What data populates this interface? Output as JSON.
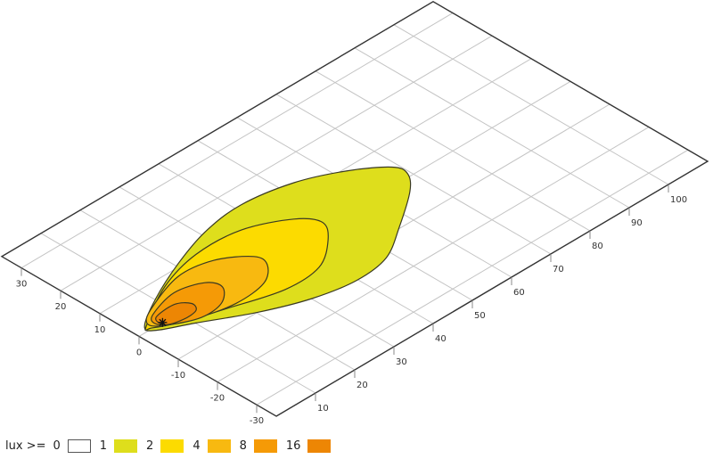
{
  "chart_data": {
    "type": "contour",
    "view": "isometric perspective ground plane",
    "x_axis": {
      "range": [
        0,
        110
      ],
      "ticks": [
        10,
        20,
        30,
        40,
        50,
        60,
        70,
        80,
        90,
        100
      ]
    },
    "y_axis": {
      "range": [
        -35,
        35
      ],
      "ticks": [
        30,
        20,
        10,
        0,
        -10,
        -20,
        -30
      ]
    },
    "grid": true,
    "grid_step": 10,
    "lamp_position": {
      "x": 6,
      "y": 0,
      "marker": "star"
    },
    "legend": {
      "prefix": "lux >=",
      "placement": "bottom-left",
      "items": [
        {
          "label": "0",
          "color": "#ffffff"
        },
        {
          "label": "1",
          "color": "#dede1c"
        },
        {
          "label": "2",
          "color": "#fcdb00"
        },
        {
          "label": "4",
          "color": "#f8b910"
        },
        {
          "label": "8",
          "color": "#f59a06"
        },
        {
          "label": "16",
          "color": "#ed8604"
        }
      ]
    },
    "contours": [
      {
        "level": 1,
        "color": "#dede1c",
        "points": [
          [
            2.8,
            1.4
          ],
          [
            10.2,
            6.0
          ],
          [
            20.8,
            10.8
          ],
          [
            31,
            14.2
          ],
          [
            41.4,
            15.5
          ],
          [
            53,
            13.5
          ],
          [
            62.4,
            9.2
          ],
          [
            68.8,
            4.3
          ],
          [
            69.4,
            1
          ],
          [
            65.9,
            -3.2
          ],
          [
            56.8,
            -9.6
          ],
          [
            48.3,
            -14.7
          ],
          [
            39.7,
            -15.8
          ],
          [
            30.1,
            -14
          ],
          [
            20.4,
            -10.1
          ],
          [
            10.1,
            -4.4
          ],
          [
            3.5,
            -0.9
          ]
        ]
      },
      {
        "level": 2,
        "color": "#fcdb00",
        "points": [
          [
            3.0,
            1.2
          ],
          [
            14.1,
            7.5
          ],
          [
            25,
            10.5
          ],
          [
            36,
            10
          ],
          [
            45.1,
            5.6
          ],
          [
            48,
            1.2
          ],
          [
            44.8,
            -3.4
          ],
          [
            37.8,
            -8.1
          ],
          [
            28.7,
            -8.6
          ],
          [
            17.4,
            -5.3
          ],
          [
            7.9,
            -2.1
          ],
          [
            3.4,
            0.2
          ]
        ]
      },
      {
        "level": 4,
        "color": "#f8b910",
        "points": [
          [
            3.9,
            1.9
          ],
          [
            7.7,
            4.5
          ],
          [
            18,
            8
          ],
          [
            26,
            6.9
          ],
          [
            31.9,
            2.6
          ],
          [
            31.8,
            -0.9
          ],
          [
            27.3,
            -4.5
          ],
          [
            19.5,
            -5.3
          ],
          [
            11.1,
            -3.4
          ],
          [
            5,
            -0.5
          ]
        ]
      },
      {
        "level": 8,
        "color": "#f59a06",
        "points": [
          [
            6.6,
            3
          ],
          [
            13.9,
            5
          ],
          [
            20,
            3.2
          ],
          [
            21.3,
            0
          ],
          [
            17.6,
            -3.4
          ],
          [
            12,
            -3.9
          ],
          [
            6.3,
            -1.3
          ],
          [
            4.8,
            1
          ]
        ]
      },
      {
        "level": 16,
        "color": "#ed8604",
        "points": [
          [
            6.2,
            1.9
          ],
          [
            11.4,
            2.4
          ],
          [
            13.8,
            0.4
          ],
          [
            12.8,
            -1.7
          ],
          [
            9.2,
            -2
          ],
          [
            5.8,
            -0.8
          ]
        ]
      }
    ]
  }
}
